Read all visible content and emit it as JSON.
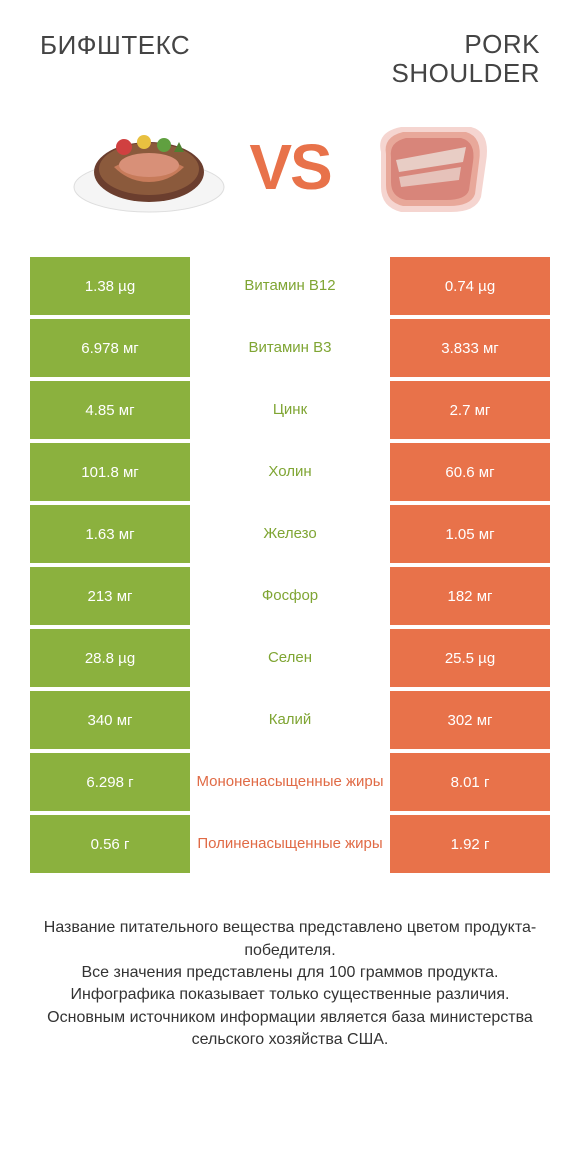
{
  "colors": {
    "green": "#8bb13e",
    "orange": "#e8724a",
    "green_text": "#7fa533",
    "orange_text": "#e06a45",
    "row_bg_alt": "#ffffff"
  },
  "header": {
    "left_title": "БИФШТЕКС",
    "right_title": "PORK\nSHOULDER",
    "vs_label": "VS"
  },
  "rows": [
    {
      "left": "1.38 µg",
      "mid": "Витамин B12",
      "right": "0.74 µg",
      "winner": "left"
    },
    {
      "left": "6.978 мг",
      "mid": "Витамин B3",
      "right": "3.833 мг",
      "winner": "left"
    },
    {
      "left": "4.85 мг",
      "mid": "Цинк",
      "right": "2.7 мг",
      "winner": "left"
    },
    {
      "left": "101.8 мг",
      "mid": "Холин",
      "right": "60.6 мг",
      "winner": "left"
    },
    {
      "left": "1.63 мг",
      "mid": "Железо",
      "right": "1.05 мг",
      "winner": "left"
    },
    {
      "left": "213 мг",
      "mid": "Фосфор",
      "right": "182 мг",
      "winner": "left"
    },
    {
      "left": "28.8 µg",
      "mid": "Селен",
      "right": "25.5 µg",
      "winner": "left"
    },
    {
      "left": "340 мг",
      "mid": "Калий",
      "right": "302 мг",
      "winner": "left"
    },
    {
      "left": "6.298 г",
      "mid": "Мононенасыщенные жиры",
      "right": "8.01 г",
      "winner": "right"
    },
    {
      "left": "0.56 г",
      "mid": "Полиненасыщенные жиры",
      "right": "1.92 г",
      "winner": "right"
    }
  ],
  "footer": {
    "line1": "Название питательного вещества представлено цветом продукта-победителя.",
    "line2": "Все значения представлены для 100 граммов продукта.",
    "line3": "Инфографика показывает только существенные различия.",
    "line4": "Основным источником информации является база министерства сельского хозяйства США."
  }
}
